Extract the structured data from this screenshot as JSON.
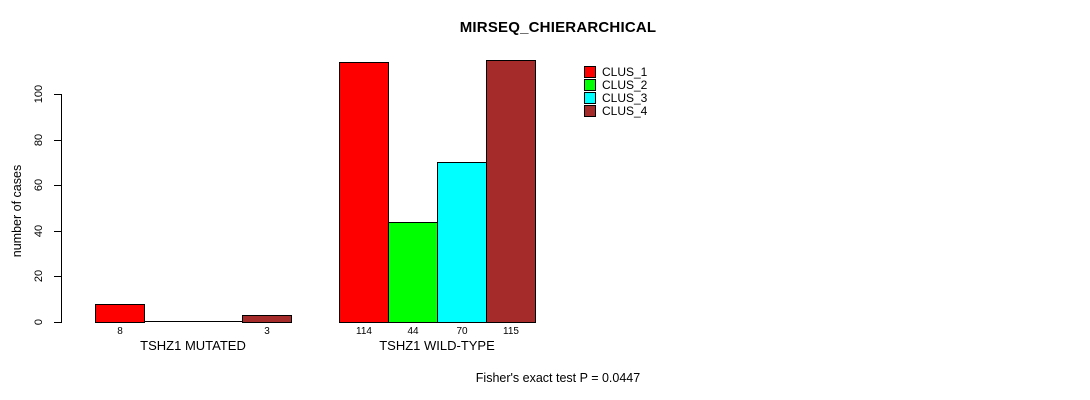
{
  "figure": {
    "title": "MIRSEQ_CHIERARCHICAL",
    "ylabel": "number of cases",
    "caption": "Fisher's exact test P = 0.0447"
  },
  "chart_data": {
    "type": "bar",
    "title": "MIRSEQ_CHIERARCHICAL",
    "xlabel": "",
    "ylabel": "number of cases",
    "categories": [
      "TSHZ1 MUTATED",
      "TSHZ1 WILD-TYPE"
    ],
    "series": [
      {
        "name": "CLUS_1",
        "color": "#ff0000",
        "values": [
          8,
          114
        ]
      },
      {
        "name": "CLUS_2",
        "color": "#00ff00",
        "values": [
          0,
          44
        ]
      },
      {
        "name": "CLUS_3",
        "color": "#00ffff",
        "values": [
          0,
          70
        ]
      },
      {
        "name": "CLUS_4",
        "color": "#a52a2a",
        "values": [
          3,
          115
        ]
      }
    ],
    "bar_value_labels": [
      [
        "8",
        "",
        "",
        "3"
      ],
      [
        "114",
        "44",
        "70",
        "115"
      ]
    ],
    "yticks": [
      0,
      20,
      40,
      60,
      80,
      100
    ],
    "ylim": [
      0,
      100
    ],
    "grid": false,
    "legend_position": "top-right",
    "legend_entries": [
      "CLUS_1",
      "CLUS_2",
      "CLUS_3",
      "CLUS_4"
    ],
    "annotation": "Fisher's exact test P = 0.0447",
    "axis_color": "#000000",
    "background_color": "#ffffff"
  }
}
